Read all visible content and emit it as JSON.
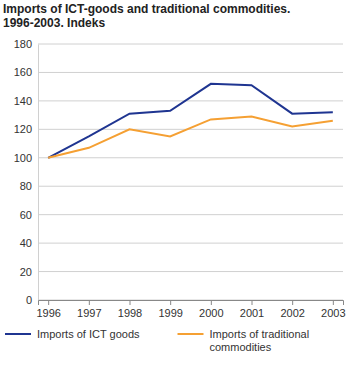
{
  "chart_data": {
    "type": "line",
    "title": "Imports of ICT-goods and traditional commodities. 1996-2003. Indeks",
    "categories": [
      "1996",
      "1997",
      "1998",
      "1999",
      "2000",
      "2001",
      "2002",
      "2003"
    ],
    "series": [
      {
        "name": "Imports of ICT goods",
        "color": "#1f3591",
        "values": [
          100,
          115,
          131,
          133,
          152,
          151,
          131,
          132
        ]
      },
      {
        "name": "Imports of traditional commodities",
        "color": "#f5a033",
        "values": [
          100,
          107,
          120,
          115,
          127,
          129,
          122,
          126
        ]
      }
    ],
    "ylim": [
      0,
      180
    ],
    "yticks": [
      0,
      20,
      40,
      60,
      80,
      100,
      120,
      140,
      160,
      180
    ],
    "grid": true,
    "legend": "bottom"
  }
}
